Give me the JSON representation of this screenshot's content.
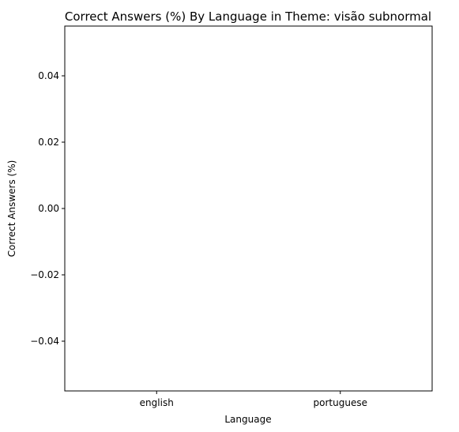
{
  "chart_data": {
    "type": "bar",
    "title": "Correct Answers (%) By Language in Theme: visão subnormal",
    "xlabel": "Language",
    "ylabel": "Correct Answers (%)",
    "categories": [
      "english",
      "portuguese"
    ],
    "values": [
      0,
      0
    ],
    "ylim": [
      -0.055,
      0.055
    ],
    "yticks": [
      0.04,
      0.02,
      0.0,
      -0.02,
      -0.04
    ],
    "ytick_labels": [
      "0.04",
      "0.02",
      "0.00",
      "−0.02",
      "−0.04"
    ],
    "grid": false,
    "legend": "none"
  }
}
